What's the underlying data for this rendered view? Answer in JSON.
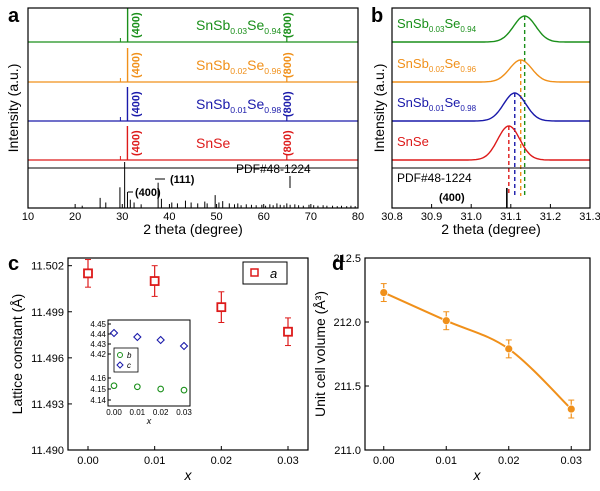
{
  "chart_data": [
    {
      "panel": "a",
      "type": "line",
      "xlabel": "2 theta (degree)",
      "ylabel": "Intensity (a.u.)",
      "xlim": [
        10,
        80
      ],
      "xticks": [
        "10",
        "20",
        "30",
        "40",
        "50",
        "60",
        "70",
        "80"
      ],
      "series": [
        {
          "name": "SnSb0.03Se0.94",
          "label_main": "SnSb",
          "sub1": "0.03",
          "label_mid": "Se",
          "sub2": "0.94",
          "color": "#1a8f1a",
          "peaks": [
            31.13,
            64.9
          ],
          "peak_labels": [
            "(400)",
            "(800)"
          ]
        },
        {
          "name": "SnSb0.02Se0.96",
          "label_main": "SnSb",
          "sub1": "0.02",
          "label_mid": "Se",
          "sub2": "0.96",
          "color": "#f0901a",
          "peaks": [
            31.12,
            64.9
          ],
          "peak_labels": [
            "(400)",
            "(800)"
          ]
        },
        {
          "name": "SnSb0.01Se0.98",
          "label_main": "SnSb",
          "sub1": "0.01",
          "label_mid": "Se",
          "sub2": "0.98",
          "color": "#1a1aaa",
          "peaks": [
            31.1,
            64.9
          ],
          "peak_labels": [
            "(400)",
            "(800)"
          ]
        },
        {
          "name": "SnSe",
          "label_main": "SnSe",
          "sub1": "",
          "label_mid": "",
          "sub2": "",
          "color": "#dd1a1a",
          "peaks": [
            31.09,
            64.9
          ],
          "peak_labels": [
            "(400)",
            "(800)"
          ]
        }
      ],
      "reference": {
        "label": "PDF#48-1224",
        "annotations": [
          "(111)",
          "(400)"
        ],
        "sticks": [
          [
            21.5,
            0.05
          ],
          [
            25.3,
            0.22
          ],
          [
            26.5,
            0.12
          ],
          [
            29.5,
            0.45
          ],
          [
            30.5,
            1.0
          ],
          [
            31.1,
            0.35
          ],
          [
            31.7,
            0.18
          ],
          [
            32.5,
            0.12
          ],
          [
            34.0,
            0.08
          ],
          [
            37.6,
            0.55
          ],
          [
            38.3,
            0.2
          ],
          [
            40.5,
            0.12
          ],
          [
            41.7,
            0.1
          ],
          [
            43.4,
            0.16
          ],
          [
            44.6,
            0.12
          ],
          [
            46.0,
            0.1
          ],
          [
            47.5,
            0.14
          ],
          [
            48.0,
            0.1
          ],
          [
            49.7,
            0.28
          ],
          [
            50.5,
            0.12
          ],
          [
            51.3,
            0.15
          ],
          [
            52.7,
            0.1
          ],
          [
            53.8,
            0.08
          ],
          [
            54.5,
            0.1
          ],
          [
            55.2,
            0.06
          ],
          [
            56.3,
            0.08
          ],
          [
            57.4,
            0.07
          ],
          [
            58.4,
            0.06
          ],
          [
            59.6,
            0.07
          ],
          [
            60.4,
            0.05
          ],
          [
            61.3,
            0.08
          ],
          [
            62.0,
            0.06
          ],
          [
            62.8,
            0.1
          ],
          [
            63.5,
            0.07
          ],
          [
            64.3,
            0.06
          ],
          [
            64.9,
            0.1
          ],
          [
            65.6,
            0.07
          ],
          [
            66.6,
            0.08
          ],
          [
            67.4,
            0.06
          ],
          [
            68.4,
            0.05
          ],
          [
            69.6,
            0.07
          ],
          [
            70.6,
            0.06
          ],
          [
            71.5,
            0.05
          ],
          [
            72.6,
            0.06
          ],
          [
            73.4,
            0.05
          ],
          [
            74.6,
            0.05
          ],
          [
            75.6,
            0.04
          ],
          [
            76.5,
            0.05
          ],
          [
            77.6,
            0.04
          ],
          [
            78.5,
            0.05
          ],
          [
            79.4,
            0.04
          ]
        ]
      }
    },
    {
      "panel": "b",
      "type": "line",
      "xlabel": "2 theta (degree)",
      "ylabel": "Intensity (a.u.)",
      "xlim": [
        30.8,
        31.3
      ],
      "xticks": [
        "30.8",
        "30.9",
        "31.0",
        "31.1",
        "31.2",
        "31.3"
      ],
      "series": [
        {
          "name": "SnSb0.03Se0.94",
          "color": "#1a8f1a",
          "peak": 31.135
        },
        {
          "name": "SnSb0.02Se0.96",
          "color": "#f0901a",
          "peak": 31.125
        },
        {
          "name": "SnSb0.01Se0.98",
          "color": "#1a1aaa",
          "peak": 31.11
        },
        {
          "name": "SnSe",
          "color": "#dd1a1a",
          "peak": 31.095
        }
      ],
      "reference": {
        "label": "PDF#48-1224",
        "peak_label": "(400)",
        "position": 31.09
      }
    },
    {
      "panel": "c",
      "type": "scatter",
      "xlabel": "x",
      "ylabel": "Lattice constant (Å)",
      "xlim": [
        -0.003,
        0.033
      ],
      "ylim": [
        11.49,
        11.5025
      ],
      "xticks": [
        "0.00",
        "0.01",
        "0.02",
        "0.03"
      ],
      "yticks": [
        "11.490",
        "11.493",
        "11.496",
        "11.499",
        "11.502"
      ],
      "series": [
        {
          "name": "a",
          "color": "#dd1a1a",
          "x": [
            0.0,
            0.01,
            0.02,
            0.03
          ],
          "y": [
            11.5015,
            11.501,
            11.4993,
            11.4977
          ],
          "err": [
            0.0009,
            0.001,
            0.001,
            0.0009
          ]
        }
      ],
      "inset": {
        "xlabel": "x",
        "xticks": [
          "0.00",
          "0.01",
          "0.02",
          "0.03"
        ],
        "yticks": [
          "4.14",
          "4.15",
          "4.16",
          "4.42",
          "4.43",
          "4.44",
          "4.45"
        ],
        "series": [
          {
            "name": "b",
            "color": "#1a8f1a",
            "x": [
              0.0,
              0.01,
              0.02,
              0.03
            ],
            "y": [
              4.153,
              4.152,
              4.15,
              4.149
            ]
          },
          {
            "name": "c",
            "color": "#1a1aaa",
            "x": [
              0.0,
              0.01,
              0.02,
              0.03
            ],
            "y": [
              4.441,
              4.437,
              4.434,
              4.428
            ]
          }
        ]
      }
    },
    {
      "panel": "d",
      "type": "line",
      "xlabel": "x",
      "ylabel": "Unit cell volume (Å³)",
      "xlim": [
        -0.003,
        0.033
      ],
      "ylim": [
        211.0,
        212.5
      ],
      "xticks": [
        "0.00",
        "0.01",
        "0.02",
        "0.03"
      ],
      "yticks": [
        "211.0",
        "211.5",
        "212.0",
        "212.5"
      ],
      "series": [
        {
          "color": "#f0901a",
          "x": [
            0.0,
            0.01,
            0.02,
            0.03
          ],
          "y": [
            212.23,
            212.01,
            211.79,
            211.32
          ],
          "err": [
            0.07,
            0.07,
            0.07,
            0.07
          ]
        }
      ]
    }
  ],
  "panels": {
    "a": {
      "letter": "a"
    },
    "b": {
      "letter": "b"
    },
    "c": {
      "letter": "c"
    },
    "d": {
      "letter": "d"
    }
  }
}
